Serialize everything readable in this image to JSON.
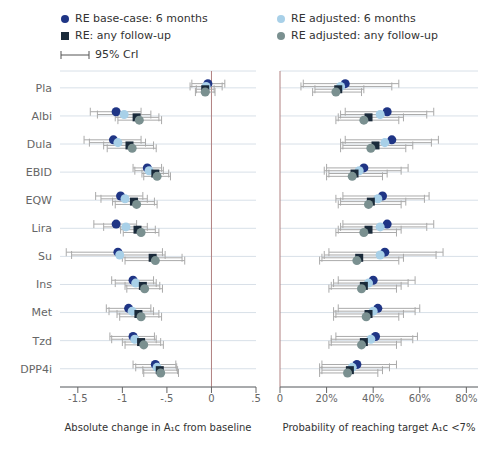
{
  "chart_data": [
    {
      "type": "scatter",
      "xlabel": "Absolute change in A₁ᴄ from baseline",
      "categories": [
        "Pla",
        "Albi",
        "Dula",
        "EBID",
        "EQW",
        "Lira",
        "Su",
        "Ins",
        "Met",
        "Tzd",
        "DPP4i"
      ],
      "xlim": [
        -1.7,
        0.5
      ],
      "xticks": [
        -1.5,
        -1,
        {
          "value": -0.5,
          "label": "-.5"
        },
        0,
        {
          "value": 0.5,
          "label": ".5"
        }
      ],
      "grid": true,
      "legend": "top",
      "reference_line": {
        "x": 0,
        "color": "#b08080"
      },
      "annotations": [
        "95% CrI"
      ],
      "series": [
        {
          "name": "RE base-case: 6 months",
          "color": "#1f3585",
          "marker": "circle",
          "values": [
            -0.04,
            -1.07,
            -1.1,
            -0.72,
            -1.02,
            -1.07,
            -1.05,
            -0.88,
            -0.93,
            -0.88,
            -0.63
          ],
          "lo": [
            -0.22,
            -1.36,
            -1.43,
            -0.88,
            -1.3,
            -1.32,
            -1.63,
            -1.12,
            -1.18,
            -1.14,
            -0.88
          ],
          "hi": [
            0.15,
            -0.79,
            -0.79,
            -0.56,
            -0.77,
            -0.84,
            -0.55,
            -0.65,
            -0.68,
            -0.64,
            -0.4
          ]
        },
        {
          "name": "RE adjusted: 6 months",
          "color": "#a8d0e8",
          "marker": "circle",
          "values": [
            -0.06,
            -0.98,
            -1.05,
            -0.7,
            -0.97,
            -0.96,
            -1.03,
            -0.85,
            -0.89,
            -0.86,
            -0.61
          ],
          "lo": [
            -0.24,
            -1.28,
            -1.37,
            -0.86,
            -1.24,
            -1.21,
            -1.57,
            -1.08,
            -1.15,
            -1.12,
            -0.85
          ],
          "hi": [
            0.12,
            -0.68,
            -0.74,
            -0.54,
            -0.72,
            -0.72,
            -0.52,
            -0.62,
            -0.65,
            -0.62,
            -0.39
          ]
        },
        {
          "name": "RE: any follow-up",
          "color": "#1a2a3a",
          "marker": "square",
          "values": [
            -0.07,
            -0.84,
            -0.92,
            -0.63,
            -0.87,
            -0.83,
            -0.66,
            -0.77,
            -0.82,
            -0.79,
            -0.58
          ],
          "lo": [
            -0.17,
            -1.08,
            -1.21,
            -0.78,
            -1.11,
            -1.02,
            -1.0,
            -0.97,
            -1.06,
            -1.0,
            -0.77
          ],
          "hi": [
            0.03,
            -0.59,
            -0.65,
            -0.48,
            -0.64,
            -0.63,
            -0.33,
            -0.58,
            -0.59,
            -0.57,
            -0.38
          ]
        },
        {
          "name": "RE adjusted: any follow-up",
          "color": "#7a9090",
          "marker": "circle",
          "values": [
            -0.07,
            -0.81,
            -0.89,
            -0.61,
            -0.84,
            -0.79,
            -0.63,
            -0.75,
            -0.79,
            -0.76,
            -0.57
          ],
          "lo": [
            -0.18,
            -1.05,
            -1.17,
            -0.76,
            -1.08,
            -0.99,
            -0.97,
            -0.95,
            -1.03,
            -0.97,
            -0.76
          ],
          "hi": [
            0.04,
            -0.56,
            -0.62,
            -0.46,
            -0.61,
            -0.59,
            -0.3,
            -0.55,
            -0.56,
            -0.54,
            -0.37
          ]
        }
      ]
    },
    {
      "type": "scatter",
      "xlabel": "Probability of reaching target A₁ᴄ <7%",
      "categories": [
        "Pla",
        "Albi",
        "Dula",
        "EBID",
        "EQW",
        "Lira",
        "Su",
        "Ins",
        "Met",
        "Tzd",
        "DPP4i"
      ],
      "xlim": [
        0.0,
        0.85
      ],
      "xticks": [
        0,
        {
          "value": 0.2,
          "label": "20%"
        },
        {
          "value": 0.4,
          "label": "40%"
        },
        {
          "value": 0.6,
          "label": "60%"
        },
        {
          "value": 0.8,
          "label": "80%"
        }
      ],
      "grid": true,
      "tick_labels": "x",
      "reference_line": {
        "x": 0,
        "color": "#b08080"
      },
      "series": [
        {
          "name": "RE base-case: 6 months",
          "color": "#1f3585",
          "marker": "circle",
          "values": [
            0.28,
            0.46,
            0.48,
            0.36,
            0.44,
            0.46,
            0.45,
            0.4,
            0.42,
            0.41,
            0.33
          ],
          "lo": [
            0.1,
            0.28,
            0.28,
            0.2,
            0.27,
            0.27,
            0.21,
            0.25,
            0.25,
            0.24,
            0.18
          ],
          "hi": [
            0.51,
            0.66,
            0.68,
            0.55,
            0.64,
            0.66,
            0.7,
            0.58,
            0.6,
            0.59,
            0.5
          ]
        },
        {
          "name": "RE adjusted: 6 months",
          "color": "#a8d0e8",
          "marker": "circle",
          "values": [
            0.26,
            0.43,
            0.45,
            0.34,
            0.42,
            0.43,
            0.43,
            0.38,
            0.4,
            0.39,
            0.31
          ],
          "lo": [
            0.09,
            0.26,
            0.26,
            0.19,
            0.24,
            0.26,
            0.19,
            0.23,
            0.23,
            0.22,
            0.17
          ],
          "hi": [
            0.48,
            0.63,
            0.65,
            0.52,
            0.62,
            0.63,
            0.67,
            0.55,
            0.58,
            0.57,
            0.47
          ]
        },
        {
          "name": "RE: any follow-up",
          "color": "#1a2a3a",
          "marker": "square",
          "values": [
            0.25,
            0.38,
            0.41,
            0.32,
            0.39,
            0.38,
            0.34,
            0.36,
            0.38,
            0.36,
            0.3
          ],
          "lo": [
            0.15,
            0.25,
            0.27,
            0.21,
            0.26,
            0.25,
            0.18,
            0.22,
            0.24,
            0.22,
            0.18
          ],
          "hi": [
            0.36,
            0.53,
            0.57,
            0.46,
            0.54,
            0.52,
            0.53,
            0.52,
            0.53,
            0.52,
            0.44
          ]
        },
        {
          "name": "RE adjusted: any follow-up",
          "color": "#7a9090",
          "marker": "circle",
          "values": [
            0.24,
            0.36,
            0.39,
            0.31,
            0.38,
            0.36,
            0.33,
            0.35,
            0.37,
            0.35,
            0.29
          ],
          "lo": [
            0.14,
            0.24,
            0.26,
            0.2,
            0.25,
            0.24,
            0.17,
            0.21,
            0.23,
            0.21,
            0.17
          ],
          "hi": [
            0.35,
            0.51,
            0.54,
            0.44,
            0.52,
            0.5,
            0.51,
            0.5,
            0.51,
            0.5,
            0.42
          ]
        }
      ]
    }
  ]
}
